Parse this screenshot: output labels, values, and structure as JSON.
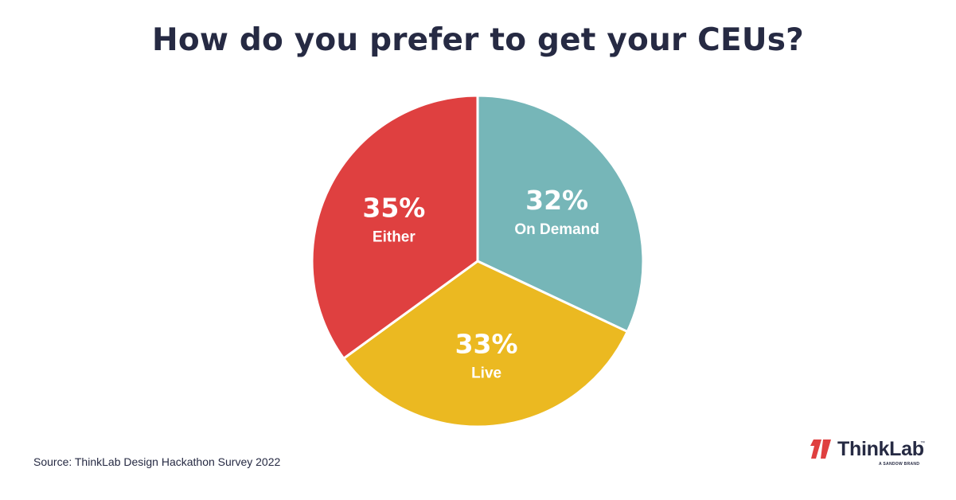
{
  "chart_data": {
    "type": "pie",
    "title": "How do you prefer to get your CEUs?",
    "slices": [
      {
        "label": "On Demand",
        "value": 32,
        "value_label": "32%",
        "color": "#76b6b8"
      },
      {
        "label": "Live",
        "value": 33,
        "value_label": "33%",
        "color": "#ebb921"
      },
      {
        "label": "Either",
        "value": 35,
        "value_label": "35%",
        "color": "#df4040"
      }
    ],
    "start_angle": "12 o'clock",
    "direction": "clockwise",
    "legend": "none"
  },
  "source": "Source: ThinkLab Design Hackathon Survey 2022",
  "logo": {
    "wordmark": "ThinkLab",
    "trademark": "™",
    "tagline": "A SANDOW BRAND",
    "accent_color": "#df4040"
  }
}
